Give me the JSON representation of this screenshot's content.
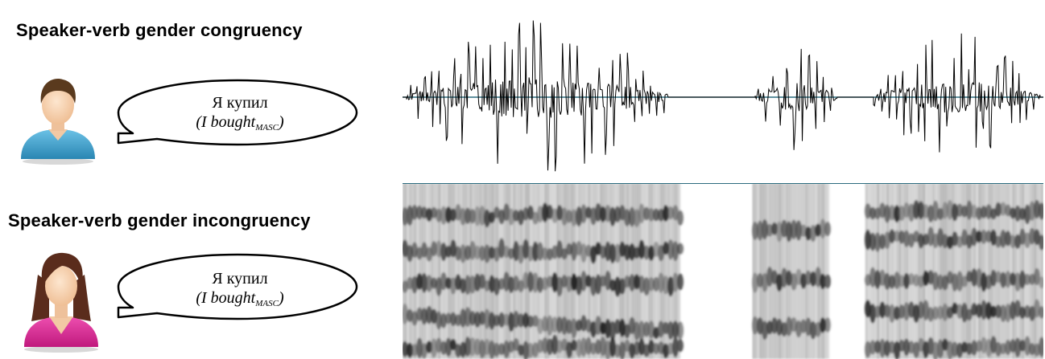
{
  "conditions": [
    {
      "heading": "Speaker-verb gender congruency",
      "speaker": "male",
      "utterance": "Я купил",
      "gloss": "(I bought",
      "gloss_subscript": "MASC",
      "gloss_close": ")"
    },
    {
      "heading": "Speaker-verb gender incongruency",
      "speaker": "female",
      "utterance": "Я купил",
      "gloss": "(I bought",
      "gloss_subscript": "MASC",
      "gloss_close": ")"
    }
  ],
  "colors": {
    "male_shirt": "#3a9dc7",
    "male_hair": "#5a3a1e",
    "female_shirt": "#d42a8f",
    "female_hair": "#5a2c1c",
    "skin": "#f7d3b0",
    "baseline": "#2b6b7e",
    "waveform": "#000000"
  },
  "icons": [
    "male-user-avatar-icon",
    "female-user-avatar-icon",
    "speech-bubble-icon"
  ]
}
